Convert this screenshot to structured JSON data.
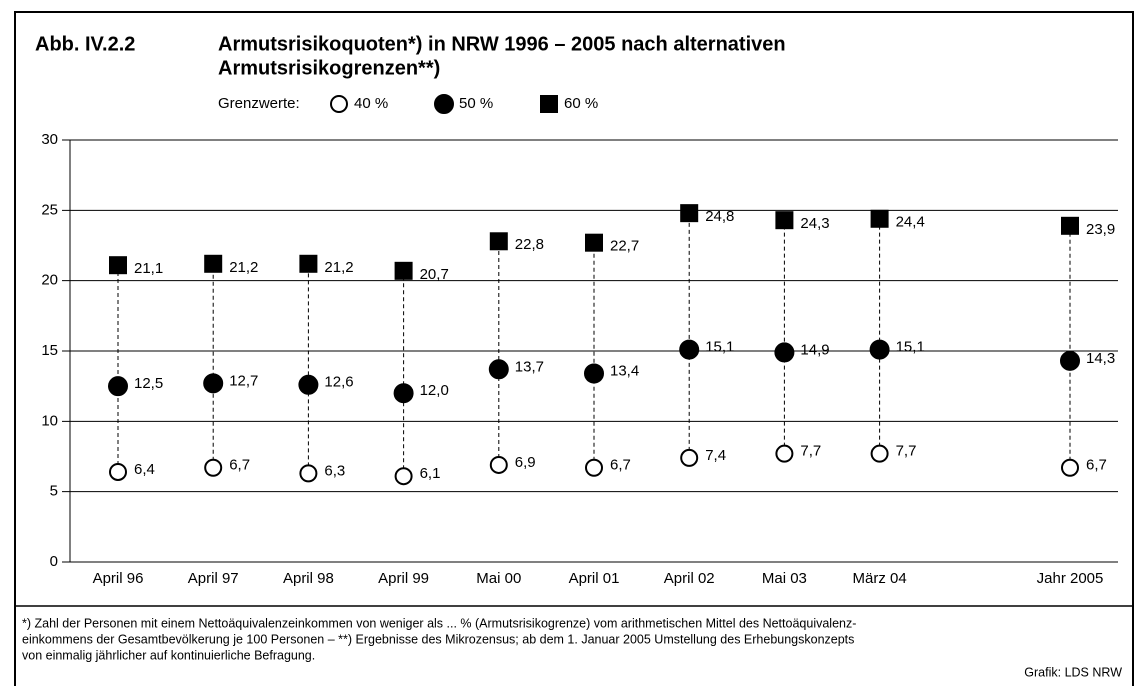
{
  "chart_data": {
    "type": "dot",
    "figure_label": "Abb. IV.2.2",
    "title": [
      "Armutsrisikoquoten*) in NRW 1996 – 2005 nach alternativen",
      "Armutsrisikogrenzen**)"
    ],
    "legend_title": "Grenzwerte:",
    "categories": [
      "April 96",
      "April 97",
      "April 98",
      "April 99",
      "Mai 00",
      "April 01",
      "April 02",
      "Mai 03",
      "März 04",
      null,
      "Jahr 2005"
    ],
    "series": [
      {
        "name": "40 %",
        "color": "#000000",
        "marker": "circle-open",
        "values": [
          6.4,
          6.7,
          6.3,
          6.1,
          6.9,
          6.7,
          7.4,
          7.7,
          7.7,
          null,
          6.7
        ],
        "value_labels": [
          "6,4",
          "6,7",
          "6,3",
          "6,1",
          "6,9",
          "6,7",
          "7,4",
          "7,7",
          "7,7",
          null,
          "6,7"
        ]
      },
      {
        "name": "50 %",
        "color": "#000000",
        "marker": "circle",
        "values": [
          12.5,
          12.7,
          12.6,
          12.0,
          13.7,
          13.4,
          15.1,
          14.9,
          15.1,
          null,
          14.3
        ],
        "value_labels": [
          "12,5",
          "12,7",
          "12,6",
          "12,0",
          "13,7",
          "13,4",
          "15,1",
          "14,9",
          "15,1",
          null,
          "14,3"
        ]
      },
      {
        "name": "60 %",
        "color": "#000000",
        "marker": "square",
        "values": [
          21.1,
          21.2,
          21.2,
          20.7,
          22.8,
          22.7,
          24.8,
          24.3,
          24.4,
          null,
          23.9
        ],
        "value_labels": [
          "21,1",
          "21,2",
          "21,2",
          "20,7",
          "22,8",
          "22,7",
          "24,8",
          "24,3",
          "24,4",
          null,
          "23,9"
        ]
      }
    ],
    "ylim": [
      0,
      30
    ],
    "yticks": [
      0,
      5,
      10,
      15,
      20,
      25,
      30
    ],
    "grid": true,
    "footnote": [
      "*) Zahl der Personen mit einem Nettoäquivalenzeinkommen von weniger als ... % (Armutsrisikogrenze) vom arithmetischen Mittel des Nettoäquivalenz-",
      "einkommens der Gesamtbevölkerung je 100 Personen – **) Ergebnisse des Mikrozensus; ab dem 1. Januar 2005 Umstellung des Erhebungskonzepts",
      "von einmalig jährlicher auf kontinuierliche Befragung."
    ],
    "source": "Grafik: LDS NRW"
  }
}
